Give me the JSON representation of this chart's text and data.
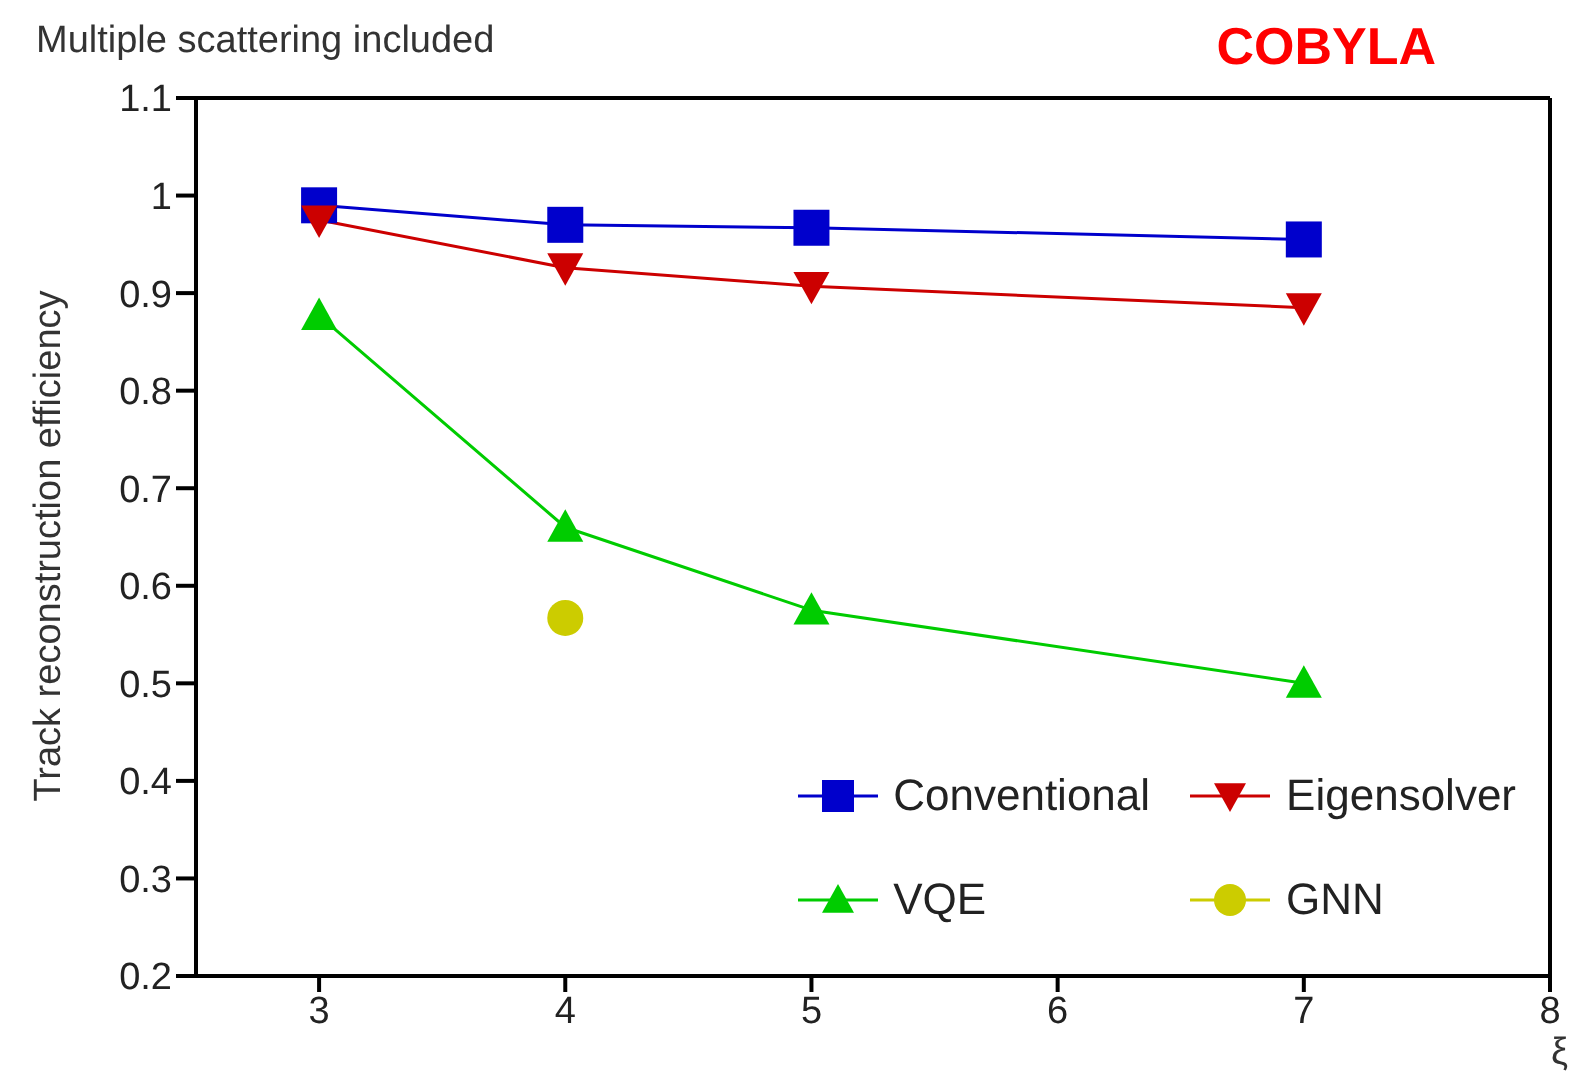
{
  "chart_data": {
    "type": "line",
    "title": "Multiple scattering included",
    "annotations": [
      "COBYLA"
    ],
    "xlabel": "ξ",
    "ylabel": "Track reconstruction efficiency",
    "x": [
      3,
      4,
      5,
      7
    ],
    "series": [
      {
        "name": "Conventional",
        "color": "#0000cc",
        "marker": "square",
        "values": [
          0.99,
          0.97,
          0.967,
          0.955
        ]
      },
      {
        "name": "Eigensolver",
        "color": "#cc0000",
        "marker": "triangle_down",
        "values": [
          0.975,
          0.926,
          0.907,
          0.885
        ]
      },
      {
        "name": "VQE",
        "color": "#00cc00",
        "marker": "triangle",
        "values": [
          0.877,
          0.66,
          0.575,
          0.5
        ]
      },
      {
        "name": "GNN",
        "color": "#cccc00",
        "type": "scatter",
        "marker": "circle",
        "x": [
          4
        ],
        "values": [
          0.567
        ]
      }
    ],
    "xlim": [
      2.5,
      8
    ],
    "xticks": [
      3,
      4,
      5,
      6,
      7,
      8
    ],
    "ylim": [
      0.2,
      1.1
    ],
    "yticks": [
      0.2,
      0.3,
      0.4,
      0.5,
      0.6,
      0.7,
      0.8,
      0.9,
      {
        "value": 1,
        "label": "1"
      },
      1.1
    ],
    "grid": false,
    "legend": "bottom right",
    "line_style": "solid"
  }
}
